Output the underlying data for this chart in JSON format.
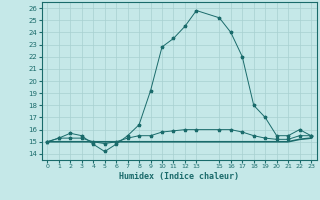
{
  "xlabel": "Humidex (Indice chaleur)",
  "xlim": [
    -0.5,
    23.5
  ],
  "ylim": [
    13.5,
    26.5
  ],
  "yticks": [
    14,
    15,
    16,
    17,
    18,
    19,
    20,
    21,
    22,
    23,
    24,
    25,
    26
  ],
  "xticks": [
    0,
    1,
    2,
    3,
    4,
    5,
    6,
    7,
    8,
    9,
    10,
    11,
    12,
    13,
    15,
    16,
    17,
    18,
    19,
    20,
    21,
    22,
    23
  ],
  "xtick_labels": [
    "0",
    "1",
    "2",
    "3",
    "4",
    "5",
    "6",
    "7",
    "8",
    "9",
    "10",
    "11",
    "12",
    "13",
    "15",
    "16",
    "17",
    "18",
    "19",
    "20",
    "21",
    "22",
    "23"
  ],
  "bg_color": "#c5e8e8",
  "grid_color": "#a8d0d0",
  "line_color": "#1a6b6b",
  "curve1_x": [
    0,
    1,
    2,
    3,
    4,
    5,
    6,
    7,
    8,
    9,
    10,
    11,
    12,
    13,
    15,
    16,
    17,
    18,
    19,
    20,
    21,
    22,
    23
  ],
  "curve1_y": [
    15.0,
    15.3,
    15.7,
    15.5,
    14.8,
    14.2,
    14.8,
    15.5,
    16.4,
    19.2,
    22.8,
    23.5,
    24.5,
    25.8,
    25.2,
    24.0,
    22.0,
    18.0,
    17.0,
    15.5,
    15.5,
    16.0,
    15.5
  ],
  "curve2_x": [
    0,
    1,
    2,
    3,
    4,
    5,
    6,
    7,
    8,
    9,
    10,
    11,
    12,
    13,
    15,
    16,
    17,
    18,
    19,
    20,
    21,
    22,
    23
  ],
  "curve2_y": [
    15.0,
    15.3,
    15.3,
    15.3,
    15.0,
    14.85,
    15.0,
    15.3,
    15.5,
    15.5,
    15.8,
    15.9,
    16.0,
    16.0,
    16.0,
    16.0,
    15.8,
    15.5,
    15.3,
    15.2,
    15.2,
    15.5,
    15.5
  ],
  "curve3_x": [
    0,
    1,
    2,
    3,
    4,
    5,
    6,
    7,
    8,
    9,
    10,
    11,
    12,
    13,
    15,
    16,
    17,
    18,
    19,
    20,
    21,
    22,
    23
  ],
  "curve3_y": [
    15.0,
    15.0,
    15.0,
    15.0,
    15.0,
    15.0,
    15.0,
    15.0,
    15.0,
    15.0,
    15.0,
    15.0,
    15.0,
    15.0,
    15.0,
    15.0,
    15.0,
    15.0,
    15.0,
    15.0,
    15.0,
    15.2,
    15.3
  ],
  "marker": "*",
  "markersize": 2.5,
  "linewidth": 0.7,
  "lw_flat": 1.2
}
